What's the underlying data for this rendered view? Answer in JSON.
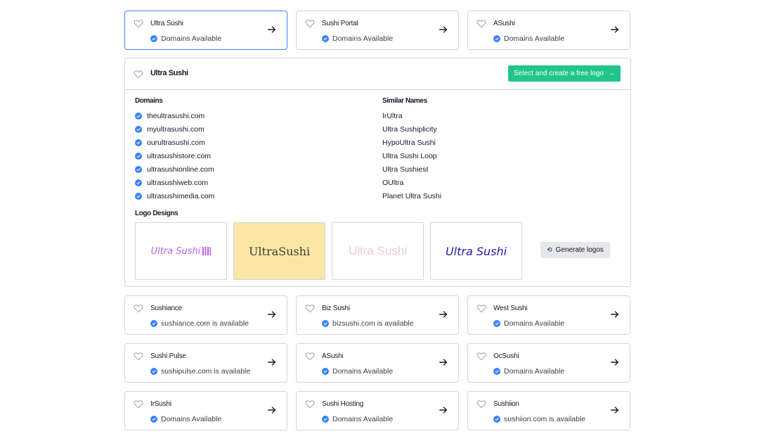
{
  "top_cards": [
    {
      "name": "Ultra Sushi",
      "status": "Domains Available",
      "selected": true
    },
    {
      "name": "Sushi Portal",
      "status": "Domains Available"
    },
    {
      "name": "ASushi",
      "status": "Domains Available"
    }
  ],
  "panel": {
    "title": "Ultra Sushi",
    "cta_label": "Select and create a free logo",
    "domains_heading": "Domains",
    "domains": [
      "theultrasushi.com",
      "myultrasushi.com",
      "ourultrasushi.com",
      "ultrasushistore.com",
      "ultrasushionline.com",
      "ultrasushiweb.com",
      "ultrasushimedia.com"
    ],
    "similar_heading": "Similar Names",
    "similar": [
      "IrUltra",
      "Ultra Sushiplicity",
      "HypoUltra Sushi",
      "Ultra Sushi Loop",
      "Ultra Sushiest",
      "OUltra",
      "Planet Ultra Sushi"
    ],
    "logos_heading": "Logo Designs",
    "logos": [
      {
        "text": "Ultra Sushi",
        "color": "#c060e0",
        "bg": "#ffffff"
      },
      {
        "text": "UltraSushi",
        "color": "#3a3a3a",
        "bg": "#fbe6a6"
      },
      {
        "text": "Ultra Sushi",
        "color": "#f3c9d8",
        "bg": "#ffffff"
      },
      {
        "text": "Ultra Sushi",
        "color": "#1e22a8",
        "bg": "#ffffff"
      }
    ],
    "generate_label": "Generate logos"
  },
  "bottom_cards": [
    {
      "name": "Sushiance",
      "status": "sushiance.com is available"
    },
    {
      "name": "Biz Sushi",
      "status": "bizsushi.com is available"
    },
    {
      "name": "West Sushi",
      "status": "Domains Available"
    },
    {
      "name": "Sushi Pulse",
      "status": "sushipulse.com is available"
    },
    {
      "name": "ASushi",
      "status": "Domains Available"
    },
    {
      "name": "OcSushi",
      "status": "Domains Available"
    },
    {
      "name": "IrSushi",
      "status": "Domains Available"
    },
    {
      "name": "Sushi Hosting",
      "status": "Domains Available"
    },
    {
      "name": "Sushiion",
      "status": "sushiion.com is available"
    }
  ],
  "colors": {
    "accent": "#3b82f6",
    "cta": "#22c58b",
    "border": "#d1d5db"
  },
  "icons": {
    "favorite": "heart-icon",
    "open": "arrow-right-icon",
    "available": "check-circle-icon",
    "regenerate": "refresh-icon"
  }
}
